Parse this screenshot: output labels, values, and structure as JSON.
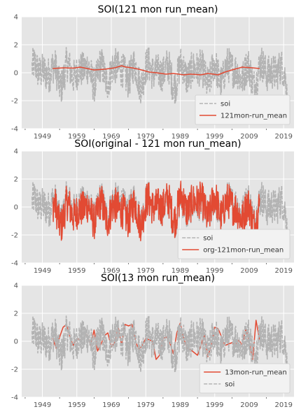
{
  "colors": {
    "soi": "#b3b3b3",
    "mean": "#e24a33",
    "panel_bg": "#e5e5e5",
    "grid": "#ffffff",
    "tick_text": "#555555",
    "title_text": "#000000"
  },
  "chart_data": [
    {
      "type": "line",
      "title": "SOI(121 mon run_mean)",
      "xlim": [
        1943,
        2022
      ],
      "ylim": [
        -4,
        4
      ],
      "xticks": [
        1949,
        1959,
        1969,
        1979,
        1989,
        1999,
        2009,
        2019
      ],
      "yticks": [
        -4,
        -2,
        0,
        2,
        4
      ],
      "grid": true,
      "legend_position": "lower right",
      "series": [
        {
          "name": "soi",
          "style": "dashed",
          "color": "#b3b3b3",
          "kind": "soi_raw"
        },
        {
          "name": "121mon-run_mean",
          "style": "solid",
          "color": "#e24a33",
          "kind": "rm121",
          "x": [
            1952,
            1955,
            1958,
            1960,
            1962,
            1964,
            1967,
            1970,
            1972,
            1973,
            1975,
            1977,
            1980,
            1982,
            1985,
            1987,
            1990,
            1992,
            1995,
            1997,
            2000,
            2002,
            2004,
            2007,
            2010,
            2012
          ],
          "y": [
            0.3,
            0.35,
            0.33,
            0.4,
            0.3,
            0.2,
            0.25,
            0.35,
            0.5,
            0.42,
            0.35,
            0.25,
            0.05,
            0.0,
            -0.1,
            -0.05,
            -0.15,
            -0.1,
            -0.15,
            -0.05,
            -0.15,
            0.05,
            0.2,
            0.4,
            0.35,
            0.3
          ]
        }
      ]
    },
    {
      "type": "line",
      "title": "SOI(original - 121 mon run_mean)",
      "xlim": [
        1943,
        2022
      ],
      "ylim": [
        -4,
        4
      ],
      "xticks": [
        1949,
        1959,
        1969,
        1979,
        1989,
        1999,
        2009,
        2019
      ],
      "yticks": [
        -4,
        -2,
        0,
        2,
        4
      ],
      "grid": true,
      "legend_position": "lower right",
      "series": [
        {
          "name": "soi",
          "style": "dashed",
          "color": "#b3b3b3",
          "kind": "soi_raw"
        },
        {
          "name": "org-121mon-run_mean",
          "style": "solid",
          "color": "#e24a33",
          "kind": "anomaly",
          "x_range": [
            1952,
            2012
          ]
        }
      ]
    },
    {
      "type": "line",
      "title": "SOI(13 mon run_mean)",
      "xlim": [
        1943,
        2022
      ],
      "ylim": [
        -4,
        4
      ],
      "xticks": [
        1949,
        1959,
        1969,
        1979,
        1989,
        1999,
        2009,
        2019
      ],
      "yticks": [
        -4,
        -2,
        0,
        2,
        4
      ],
      "grid": true,
      "legend_position": "lower right",
      "series": [
        {
          "name": "13mon-run_mean",
          "style": "solid",
          "color": "#e24a33",
          "kind": "rm13",
          "x": [
            1952,
            1953,
            1954,
            1955,
            1956,
            1957,
            1958,
            1959,
            1960,
            1961,
            1962,
            1963,
            1964,
            1965,
            1966,
            1967,
            1968,
            1969,
            1970,
            1971,
            1972,
            1973,
            1974,
            1975,
            1976,
            1977,
            1978,
            1979,
            1980,
            1981,
            1982,
            1983,
            1984,
            1985,
            1986,
            1987,
            1988,
            1989,
            1990,
            1991,
            1992,
            1993,
            1994,
            1995,
            1996,
            1997,
            1998,
            1999,
            2000,
            2001,
            2002,
            2003,
            2004,
            2005,
            2006,
            2007,
            2008,
            2009,
            2010,
            2011,
            2012
          ],
          "y": [
            0.2,
            -0.5,
            0.3,
            1.0,
            1.2,
            0.3,
            -0.3,
            0.2,
            0.1,
            0.3,
            0.5,
            -0.3,
            0.8,
            -0.7,
            -0.2,
            0.4,
            0.6,
            -0.4,
            -0.1,
            1.0,
            -0.3,
            1.2,
            1.1,
            1.2,
            0.0,
            -0.6,
            -0.3,
            0.2,
            0.1,
            0.0,
            -1.3,
            -1.0,
            0.2,
            0.3,
            -0.1,
            -0.9,
            0.6,
            1.3,
            0.2,
            -0.5,
            -0.6,
            -0.8,
            -1.0,
            -0.3,
            0.5,
            -1.1,
            -0.3,
            1.0,
            0.9,
            0.3,
            -0.3,
            -0.2,
            -0.1,
            -0.3,
            0.1,
            -0.3,
            0.9,
            0.0,
            -1.3,
            1.5,
            0.1
          ]
        },
        {
          "name": "soi",
          "style": "dashed",
          "color": "#b3b3b3",
          "kind": "soi_raw"
        }
      ]
    }
  ]
}
